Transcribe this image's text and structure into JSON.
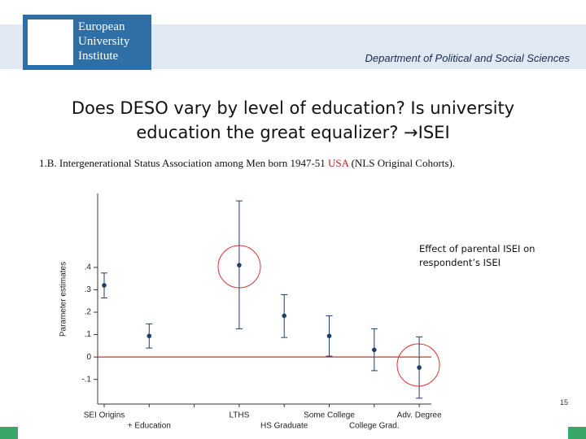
{
  "header": {
    "logo": [
      "European",
      "University",
      "Institute"
    ],
    "department": "Department of Political and Social Sciences"
  },
  "slide_title": "Does DESO vary by level of education? Is university education the great equalizer? →ISEI",
  "caption": {
    "before": "1.B. Intergenerational Status Association among Men born 1947-51 ",
    "highlight": "USA",
    "after": " (NLS Original Cohorts)."
  },
  "note": "Effect of parental ISEI on respondent’s ISEI",
  "page_number": "15",
  "chart_data": {
    "type": "errorbar",
    "y_label": "Parameter estimates",
    "categories": [
      "SEI Origins",
      "+ Education",
      null,
      "LTHS",
      "HS Graduate",
      "Some College",
      "College Grad.",
      "Adv. Degree"
    ],
    "values": [
      0.32,
      0.094,
      null,
      0.41,
      0.184,
      0.094,
      0.032,
      -0.047
    ],
    "lower": [
      0.264,
      0.04,
      null,
      0.126,
      0.087,
      0.004,
      -0.061,
      -0.184
    ],
    "upper": [
      0.375,
      0.148,
      null,
      0.697,
      0.278,
      0.184,
      0.126,
      0.09
    ],
    "color": "#1f3f66",
    "reference_line": 0,
    "reference_color": "#c0392b",
    "ylim": [
      -0.21,
      0.73
    ],
    "yticks": [
      {
        "value": -0.1,
        "label": "-.1"
      },
      0,
      {
        "value": 0.1,
        "label": ".1"
      },
      {
        "value": 0.2,
        "label": ".2"
      },
      {
        "value": 0.3,
        "label": ".3"
      },
      {
        "value": 0.4,
        "label": ".4"
      }
    ]
  }
}
